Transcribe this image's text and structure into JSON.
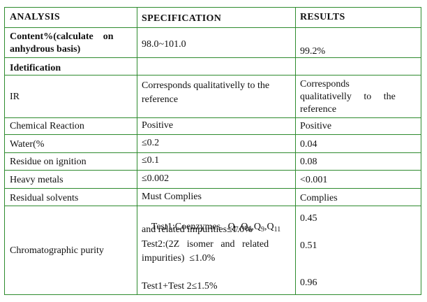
{
  "headers": {
    "analysis": "ANALYSIS",
    "specification": "SPECIFICATION",
    "results": "RESULTS"
  },
  "rows": {
    "content": {
      "analysis_line1": "Content%(calculate    on",
      "analysis_line2": "anhydrous basis)",
      "specification": "98.0~101.0",
      "result": "99.2%"
    },
    "identification": {
      "label": "Idetification"
    },
    "ir": {
      "analysis": "IR",
      "spec_line1": "Corresponds qualitativelly to the",
      "spec_line2": "reference",
      "result_line1": "Corresponds",
      "result_line2": "qualitativelly     to     the",
      "result_line3": "reference"
    },
    "chemical": {
      "analysis": "Chemical Reaction",
      "specification": "Positive",
      "result": "Positive"
    },
    "water": {
      "analysis": "Water(%",
      "specification": "≤0.2",
      "result": "0.04"
    },
    "residue": {
      "analysis": "Residue on ignition",
      "specification": "≤0.1",
      "result": "0.08"
    },
    "heavy": {
      "analysis": "Heavy metals",
      "specification": "≤0.002",
      "result": "<0.001"
    },
    "solvents": {
      "analysis": "Residual solvents",
      "specification": "Must Complies",
      "result": "Complies"
    },
    "chromatographic": {
      "analysis": "Chromatographic purity",
      "test1_prefix": "Test1:Coenzymes",
      "q": "Q",
      "sub7": "7",
      "sub8": "8",
      "sub9": "9",
      "sub11": "11",
      "comma": ",",
      "test1_line2": "and related impurities≤1.0%",
      "test2_line1": "Test2:(2Z   isomer   and   related",
      "test2_line2": "impurities)  ≤1.0%",
      "test3": "Test1+Test 2≤1.5%",
      "result1": "0.45",
      "result2": "0.51",
      "result3": "0.96"
    }
  }
}
